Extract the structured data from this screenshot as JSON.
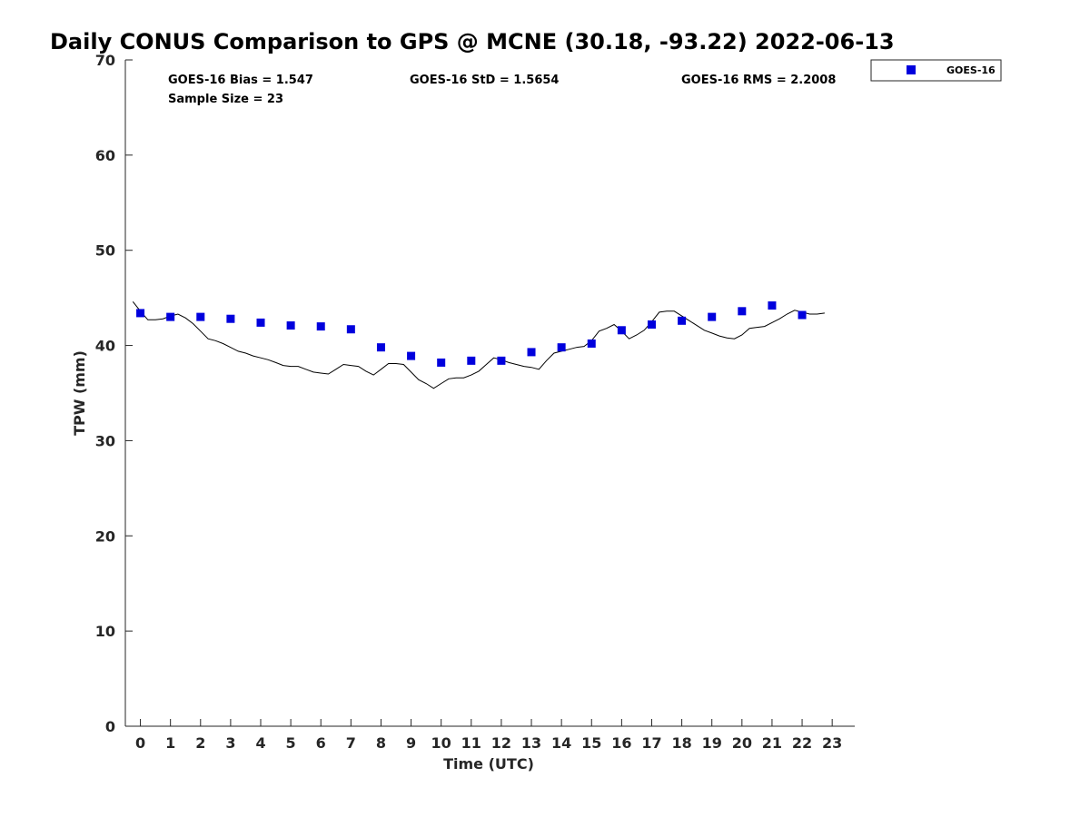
{
  "chart_data": {
    "type": "scatter",
    "title": "Daily CONUS Comparison to GPS @ MCNE (30.18, -93.22) 2022-06-13",
    "xlabel": "Time (UTC)",
    "ylabel": "TPW (mm)",
    "xlim": [
      -0.5,
      23.75
    ],
    "ylim": [
      0,
      70
    ],
    "xticks": [
      0,
      1,
      2,
      3,
      4,
      5,
      6,
      7,
      8,
      9,
      10,
      11,
      12,
      13,
      14,
      15,
      16,
      17,
      18,
      19,
      20,
      21,
      22,
      23
    ],
    "yticks": [
      0,
      10,
      20,
      30,
      40,
      50,
      60,
      70
    ],
    "grid": false,
    "legend_position": "top-right, outside",
    "stats": {
      "bias": "GOES-16 Bias = 1.547",
      "std": "GOES-16 StD = 1.5654",
      "rms": "GOES-16 RMS = 2.2008",
      "sample": "Sample Size = 23"
    },
    "series": [
      {
        "name": "GOES-16",
        "kind": "markers",
        "color": "#0000dd",
        "x": [
          0,
          1,
          2,
          3,
          4,
          5,
          6,
          7,
          8,
          9,
          10,
          11,
          12,
          13,
          14,
          15,
          16,
          17,
          18,
          19,
          20,
          21,
          22
        ],
        "y": [
          43.4,
          43.0,
          43.0,
          42.8,
          42.4,
          42.1,
          42.0,
          41.7,
          39.8,
          38.9,
          38.2,
          38.4,
          38.4,
          39.3,
          39.8,
          40.2,
          41.6,
          42.2,
          42.6,
          43.0,
          43.6,
          44.2,
          43.2
        ]
      },
      {
        "kind": "line",
        "color": "#000000",
        "x": [
          -0.25,
          0.0,
          0.25,
          0.5,
          0.75,
          1.0,
          1.25,
          1.5,
          1.75,
          2.0,
          2.25,
          2.5,
          2.75,
          3.0,
          3.25,
          3.5,
          3.75,
          4.0,
          4.25,
          4.5,
          4.75,
          5.0,
          5.25,
          5.5,
          5.75,
          6.0,
          6.25,
          6.5,
          6.75,
          7.0,
          7.25,
          7.5,
          7.75,
          8.0,
          8.25,
          8.5,
          8.75,
          9.0,
          9.25,
          9.5,
          9.75,
          10.0,
          10.25,
          10.5,
          10.75,
          11.0,
          11.25,
          11.5,
          11.75,
          12.0,
          12.25,
          12.5,
          12.75,
          13.0,
          13.25,
          13.5,
          13.75,
          14.0,
          14.25,
          14.5,
          14.75,
          15.0,
          15.25,
          15.5,
          15.75,
          16.0,
          16.25,
          16.5,
          16.75,
          17.0,
          17.25,
          17.5,
          17.75,
          18.0,
          18.25,
          18.5,
          18.75,
          19.0,
          19.25,
          19.5,
          19.75,
          20.0,
          20.25,
          20.5,
          20.75,
          21.0,
          21.25,
          21.5,
          21.75,
          22.0,
          22.25,
          22.5,
          22.75
        ],
        "y": [
          44.6,
          43.6,
          42.7,
          42.7,
          42.8,
          43.1,
          43.3,
          42.9,
          42.3,
          41.5,
          40.7,
          40.5,
          40.2,
          39.8,
          39.4,
          39.2,
          38.9,
          38.7,
          38.5,
          38.2,
          37.9,
          37.8,
          37.8,
          37.5,
          37.2,
          37.1,
          37.0,
          37.5,
          38.0,
          37.9,
          37.8,
          37.3,
          36.9,
          37.5,
          38.1,
          38.1,
          38.0,
          37.2,
          36.4,
          36.0,
          35.5,
          36.0,
          36.5,
          36.6,
          36.6,
          36.9,
          37.3,
          38.0,
          38.7,
          38.5,
          38.2,
          38.0,
          37.8,
          37.7,
          37.5,
          38.4,
          39.2,
          39.4,
          39.6,
          39.8,
          39.9,
          40.5,
          41.5,
          41.8,
          42.2,
          41.5,
          40.7,
          41.1,
          41.6,
          42.5,
          43.5,
          43.6,
          43.6,
          43.1,
          42.6,
          42.1,
          41.6,
          41.3,
          41.0,
          40.8,
          40.7,
          41.1,
          41.8,
          41.9,
          42.0,
          42.4,
          42.8,
          43.3,
          43.7,
          43.5,
          43.3,
          43.3,
          43.4
        ]
      }
    ]
  }
}
